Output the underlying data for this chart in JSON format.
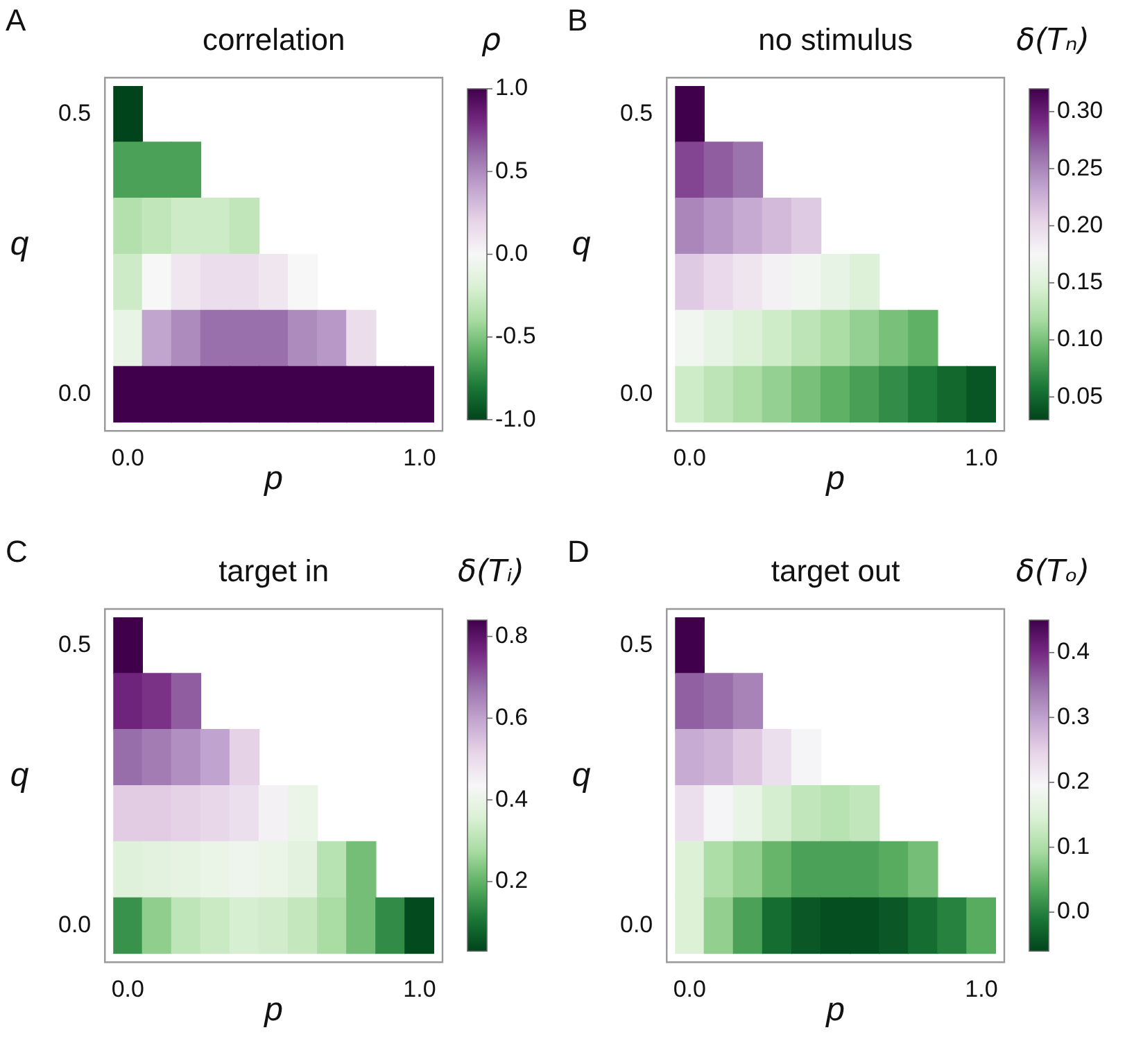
{
  "chart_data": [
    {
      "type": "heatmap",
      "title": "correlation",
      "xlabel": "p",
      "ylabel": "q",
      "clabel": "ρ",
      "annotations": [
        "A"
      ],
      "categories": [
        "0.0",
        null,
        null,
        null,
        null,
        null,
        null,
        null,
        null,
        null,
        "1.0"
      ],
      "y_categories": [
        "0.5",
        null,
        null,
        null,
        null,
        "0.0"
      ],
      "cells": [
        [
          -1.0,
          null,
          null,
          null,
          null,
          null,
          null,
          null,
          null,
          null,
          null
        ],
        [
          -0.65,
          -0.65,
          -0.65,
          null,
          null,
          null,
          null,
          null,
          null,
          null,
          null
        ],
        [
          -0.35,
          -0.3,
          -0.25,
          -0.25,
          -0.3,
          null,
          null,
          null,
          null,
          null,
          null
        ],
        [
          -0.25,
          0.0,
          0.1,
          0.15,
          0.15,
          0.1,
          0.0,
          null,
          null,
          null,
          null
        ],
        [
          -0.1,
          0.4,
          0.5,
          0.6,
          0.6,
          0.6,
          0.5,
          0.45,
          0.15,
          null,
          null
        ],
        [
          1.0,
          1.0,
          1.0,
          1.0,
          1.0,
          1.0,
          1.0,
          1.0,
          1.0,
          1.0,
          1.0
        ]
      ],
      "clim": [
        -1.0,
        1.0
      ],
      "cticks": [
        {
          "value": -1,
          "label": "-1.0"
        },
        {
          "value": -0.5,
          "label": "-0.5"
        },
        {
          "value": 0,
          "label": "0.0"
        },
        {
          "value": 0.5,
          "label": "0.5"
        },
        {
          "value": 1,
          "label": "1.0"
        }
      ]
    },
    {
      "type": "heatmap",
      "title": "no stimulus",
      "xlabel": "p",
      "ylabel": "q",
      "clabel": "δ(Tₙ)",
      "annotations": [
        "B"
      ],
      "categories": [
        "0.0",
        null,
        null,
        null,
        null,
        null,
        null,
        null,
        null,
        null,
        "1.0"
      ],
      "y_categories": [
        "0.5",
        null,
        null,
        null,
        null,
        "0.0"
      ],
      "cells": [
        [
          0.32,
          null,
          null,
          null,
          null,
          null,
          null,
          null,
          null,
          null,
          null
        ],
        [
          0.28,
          0.27,
          0.26,
          null,
          null,
          null,
          null,
          null,
          null,
          null,
          null
        ],
        [
          0.25,
          0.24,
          0.23,
          0.22,
          0.21,
          null,
          null,
          null,
          null,
          null,
          null
        ],
        [
          0.21,
          0.2,
          0.19,
          0.18,
          0.17,
          0.16,
          0.15,
          null,
          null,
          null,
          null
        ],
        [
          0.17,
          0.16,
          0.15,
          0.14,
          0.13,
          0.12,
          0.11,
          0.1,
          0.09,
          null,
          null
        ],
        [
          0.14,
          0.13,
          0.12,
          0.11,
          0.1,
          0.09,
          0.08,
          0.07,
          0.06,
          0.05,
          0.04
        ]
      ],
      "clim": [
        0.03,
        0.32
      ],
      "cticks": [
        {
          "value": 0.05,
          "label": "0.05"
        },
        {
          "value": 0.1,
          "label": "0.10"
        },
        {
          "value": 0.15,
          "label": "0.15"
        },
        {
          "value": 0.2,
          "label": "0.20"
        },
        {
          "value": 0.25,
          "label": "0.25"
        },
        {
          "value": 0.3,
          "label": "0.30"
        }
      ]
    },
    {
      "type": "heatmap",
      "title": "target in",
      "xlabel": "p",
      "ylabel": "q",
      "clabel": "δ(Tᵢ)",
      "annotations": [
        "C"
      ],
      "categories": [
        "0.0",
        null,
        null,
        null,
        null,
        null,
        null,
        null,
        null,
        null,
        "1.0"
      ],
      "y_categories": [
        "0.5",
        null,
        null,
        null,
        null,
        "0.0"
      ],
      "cells": [
        [
          0.84,
          null,
          null,
          null,
          null,
          null,
          null,
          null,
          null,
          null,
          null
        ],
        [
          0.77,
          0.75,
          0.7,
          null,
          null,
          null,
          null,
          null,
          null,
          null,
          null
        ],
        [
          0.68,
          0.66,
          0.63,
          0.6,
          0.52,
          null,
          null,
          null,
          null,
          null,
          null
        ],
        [
          0.53,
          0.53,
          0.52,
          0.51,
          0.49,
          0.45,
          0.4,
          null,
          null,
          null,
          null
        ],
        [
          0.37,
          0.38,
          0.39,
          0.4,
          0.41,
          0.4,
          0.38,
          0.3,
          0.22,
          null,
          null
        ],
        [
          0.15,
          0.25,
          0.31,
          0.33,
          0.35,
          0.34,
          0.32,
          0.28,
          0.22,
          0.14,
          0.04
        ]
      ],
      "clim": [
        0.03,
        0.84
      ],
      "cticks": [
        0.2,
        0.4,
        0.6,
        0.8
      ]
    },
    {
      "type": "heatmap",
      "title": "target out",
      "xlabel": "p",
      "ylabel": "q",
      "clabel": "δ(Tₒ)",
      "annotations": [
        "D"
      ],
      "categories": [
        "0.0",
        null,
        null,
        null,
        null,
        null,
        null,
        null,
        null,
        null,
        "1.0"
      ],
      "y_categories": [
        "0.5",
        null,
        null,
        null,
        null,
        "0.0"
      ],
      "cells": [
        [
          0.45,
          null,
          null,
          null,
          null,
          null,
          null,
          null,
          null,
          null,
          null
        ],
        [
          0.36,
          0.35,
          0.33,
          null,
          null,
          null,
          null,
          null,
          null,
          null,
          null
        ],
        [
          0.29,
          0.28,
          0.26,
          0.23,
          0.2,
          null,
          null,
          null,
          null,
          null,
          null
        ],
        [
          0.23,
          0.2,
          0.17,
          0.14,
          0.12,
          0.11,
          0.12,
          null,
          null,
          null,
          null
        ],
        [
          0.15,
          0.1,
          0.08,
          0.05,
          0.03,
          0.03,
          0.03,
          0.04,
          0.06,
          null,
          null
        ],
        [
          0.15,
          0.08,
          0.03,
          -0.02,
          -0.04,
          -0.05,
          -0.05,
          -0.04,
          -0.02,
          0.0,
          0.04
        ]
      ],
      "clim": [
        -0.06,
        0.45
      ],
      "cticks": [
        {
          "value": 0,
          "label": "0.0"
        },
        0.1,
        0.2,
        0.3,
        0.4
      ]
    }
  ]
}
